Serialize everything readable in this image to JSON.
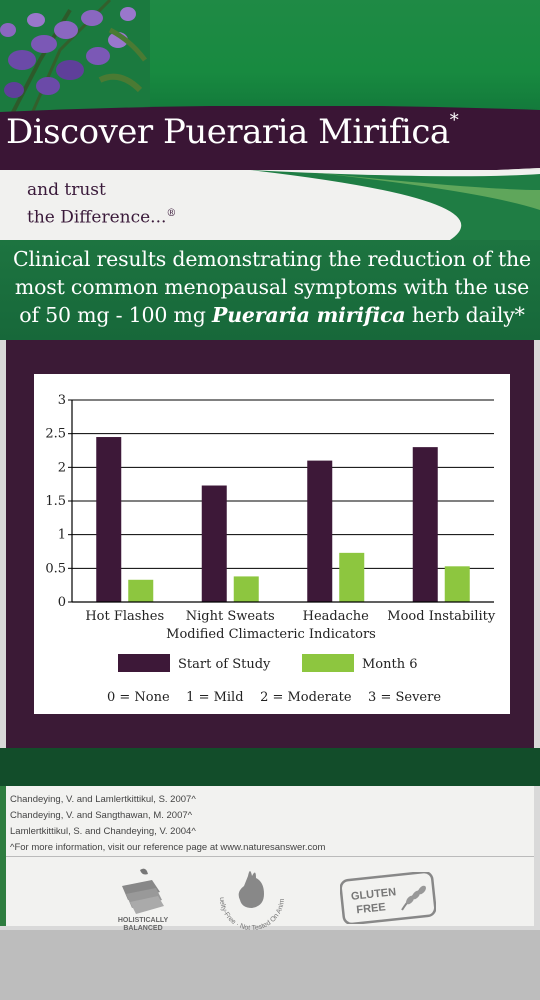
{
  "banner": {
    "title": "Discover Pueraria Mirifica",
    "title_mark": "*",
    "tagline_line1": "and trust",
    "tagline_line2": "the Difference...",
    "tagline_mark": "®"
  },
  "intro": {
    "line1": "Clinical results demonstrating the reduction of the",
    "line2": "most common menopausal symptoms with the use",
    "line3_prefix": "of 50 mg - 100 mg ",
    "line3_emphasis": "Pueraria mirifica",
    "line3_suffix": " herb daily*"
  },
  "chart_data": {
    "type": "bar",
    "title": "",
    "xlabel": "Modified Climacteric Indicators",
    "ylabel": "",
    "categories": [
      "Hot Flashes",
      "Night Sweats",
      "Headache",
      "Mood Instability"
    ],
    "series": [
      {
        "name": "Start of Study",
        "values": [
          2.45,
          1.73,
          2.1,
          2.3
        ],
        "color": "#3d1838"
      },
      {
        "name": "Month 6",
        "values": [
          0.33,
          0.38,
          0.73,
          0.53
        ],
        "color": "#8dc63f"
      }
    ],
    "yticks": [
      "0",
      "0.5",
      "1",
      "1.5",
      "2",
      "2.5",
      "3"
    ],
    "ylim": [
      0,
      3
    ],
    "grid": true,
    "legend": "bottom",
    "scale_note": "0 = None    1 = Mild    2 = Moderate    3 = Severe"
  },
  "references": [
    "Chandeying, V. and Lamlertkittikul, S. 2007^",
    "Chandeying, V. and Sangthawan, M. 2007^",
    "Lamlertkittikul, S. and Chandeying, V. 2004^",
    "^For more information, visit our reference page at www.naturesanswer.com"
  ],
  "badges": {
    "holistic_line1": "HOLISTICALLY",
    "holistic_line2": "BALANCED",
    "cruelty_text": "Cruelty-Free · Not Tested On Animals",
    "gluten_line1": "GLUTEN",
    "gluten_line2": "FREE"
  }
}
